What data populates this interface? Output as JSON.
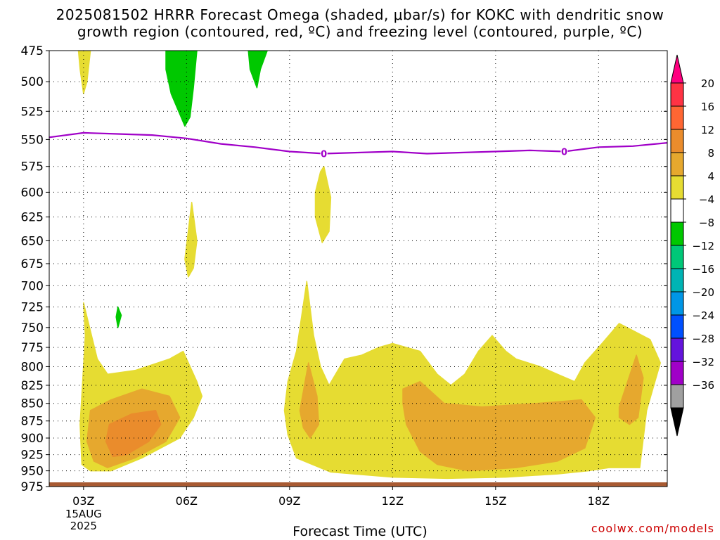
{
  "title_line1": "2025081502 HRRR Forecast Omega (shaded, μbar/s) for KOKC with dendritic snow",
  "title_line2": "growth region (contoured, red, ºC) and freezing level (contoured, purple, ºC)",
  "credit": "coolwx.com/models",
  "chart_data": {
    "type": "time-height",
    "xlabel": "Forecast Time (UTC)",
    "x_ticks": [
      {
        "hour": 3,
        "label": "03Z",
        "sub": [
          "15AUG",
          "2025"
        ]
      },
      {
        "hour": 6,
        "label": "06Z"
      },
      {
        "hour": 9,
        "label": "09Z"
      },
      {
        "hour": 12,
        "label": "12Z"
      },
      {
        "hour": 15,
        "label": "15Z"
      },
      {
        "hour": 18,
        "label": "18Z"
      }
    ],
    "xlim": [
      2,
      20
    ],
    "y_ticks": [
      475,
      500,
      525,
      550,
      575,
      600,
      625,
      650,
      675,
      700,
      725,
      750,
      775,
      800,
      825,
      850,
      875,
      900,
      925,
      950,
      975
    ],
    "ylim": [
      475,
      975
    ],
    "y_scale": "log-pressure",
    "grid": true,
    "colorbar": {
      "labels": [
        "20",
        "16",
        "12",
        "8",
        "4",
        "−4",
        "−8",
        "−12",
        "−16",
        "−20",
        "−24",
        "−28",
        "−32",
        "−36"
      ],
      "colors": [
        "#ff0080",
        "#ff3344",
        "#ff6633",
        "#ea8c2c",
        "#e6a82e",
        "#e6dc32",
        "#ffffff",
        "#00c800",
        "#00c878",
        "#00b4b4",
        "#0096e6",
        "#0050ff",
        "#6414dc",
        "#a000c8",
        "#a0a0a0",
        "#000000"
      ]
    },
    "omega_colors": {
      "4": "#e6dc32",
      "8": "#e6a82e",
      "12": "#ea8c2c",
      "-4": "#00c800"
    },
    "freezing_level": {
      "color": "#a000c8",
      "label": "0",
      "label_hours": [
        10,
        17
      ],
      "points": [
        [
          2,
          548
        ],
        [
          3,
          544
        ],
        [
          4,
          545
        ],
        [
          5,
          546
        ],
        [
          6,
          549
        ],
        [
          7,
          554
        ],
        [
          8,
          557
        ],
        [
          9,
          561
        ],
        [
          10,
          563
        ],
        [
          11,
          562
        ],
        [
          12,
          561
        ],
        [
          13,
          563
        ],
        [
          14,
          562
        ],
        [
          15,
          561
        ],
        [
          16,
          560
        ],
        [
          17,
          561
        ],
        [
          18,
          557
        ],
        [
          19,
          556
        ],
        [
          20,
          553
        ]
      ]
    },
    "ground_color": "#a85a32",
    "regions": [
      {
        "level": 4,
        "points": [
          [
            2.95,
            940
          ],
          [
            2.9,
            880
          ],
          [
            3.05,
            760
          ],
          [
            3,
            720
          ],
          [
            3.4,
            790
          ],
          [
            3.7,
            810
          ],
          [
            4.5,
            805
          ],
          [
            5.5,
            790
          ],
          [
            5.9,
            780
          ],
          [
            6.3,
            820
          ],
          [
            6.45,
            840
          ],
          [
            6.2,
            870
          ],
          [
            5.8,
            900
          ],
          [
            4.7,
            930
          ],
          [
            3.8,
            950
          ],
          [
            3.2,
            950
          ]
        ]
      },
      {
        "level": 8,
        "points": [
          [
            3.1,
            905
          ],
          [
            3.2,
            860
          ],
          [
            3.8,
            845
          ],
          [
            4.7,
            830
          ],
          [
            5.5,
            840
          ],
          [
            5.8,
            870
          ],
          [
            5.4,
            905
          ],
          [
            4.5,
            930
          ],
          [
            3.7,
            945
          ],
          [
            3.3,
            935
          ]
        ]
      },
      {
        "level": 12,
        "points": [
          [
            3.65,
            905
          ],
          [
            3.75,
            880
          ],
          [
            4.4,
            865
          ],
          [
            5.1,
            860
          ],
          [
            5.25,
            880
          ],
          [
            4.9,
            905
          ],
          [
            4.25,
            925
          ],
          [
            3.85,
            928
          ]
        ]
      },
      {
        "level": 4,
        "points": [
          [
            8.85,
            860
          ],
          [
            8.95,
            820
          ],
          [
            9.2,
            780
          ],
          [
            9.5,
            695
          ],
          [
            9.7,
            760
          ],
          [
            9.9,
            800
          ],
          [
            10.15,
            825
          ],
          [
            10.6,
            790
          ],
          [
            11.1,
            785
          ],
          [
            11.6,
            775
          ],
          [
            12,
            770
          ],
          [
            12.4,
            775
          ],
          [
            12.8,
            780
          ],
          [
            13.3,
            810
          ],
          [
            13.7,
            825
          ],
          [
            14.1,
            810
          ],
          [
            14.5,
            780
          ],
          [
            14.9,
            760
          ],
          [
            15.3,
            780
          ],
          [
            15.6,
            790
          ],
          [
            16.3,
            800
          ],
          [
            16.8,
            810
          ],
          [
            17.3,
            820
          ],
          [
            17.6,
            795
          ],
          [
            18.1,
            770
          ],
          [
            18.6,
            745
          ],
          [
            19.5,
            765
          ],
          [
            19.8,
            795
          ],
          [
            19.4,
            860
          ],
          [
            19.2,
            945
          ],
          [
            18.3,
            945
          ],
          [
            17.7,
            950
          ],
          [
            16.8,
            955
          ],
          [
            15.3,
            960
          ],
          [
            13.6,
            962
          ],
          [
            12,
            960
          ],
          [
            10.2,
            952
          ],
          [
            9.2,
            930
          ],
          [
            8.95,
            895
          ]
        ]
      },
      {
        "level": 8,
        "points": [
          [
            9.3,
            860
          ],
          [
            9.55,
            795
          ],
          [
            9.8,
            840
          ],
          [
            9.85,
            880
          ],
          [
            9.6,
            900
          ],
          [
            9.4,
            885
          ]
        ]
      },
      {
        "level": 8,
        "points": [
          [
            12.3,
            830
          ],
          [
            12.8,
            820
          ],
          [
            13.5,
            850
          ],
          [
            14.6,
            855
          ],
          [
            16.2,
            850
          ],
          [
            17.5,
            845
          ],
          [
            17.9,
            870
          ],
          [
            17.6,
            915
          ],
          [
            16.8,
            935
          ],
          [
            15.6,
            945
          ],
          [
            14.2,
            950
          ],
          [
            13.3,
            940
          ],
          [
            12.8,
            920
          ],
          [
            12.4,
            880
          ],
          [
            12.3,
            850
          ]
        ]
      },
      {
        "level": 8,
        "points": [
          [
            18.6,
            855
          ],
          [
            19.1,
            785
          ],
          [
            19.3,
            815
          ],
          [
            19.15,
            870
          ],
          [
            18.9,
            880
          ],
          [
            18.6,
            870
          ]
        ]
      },
      {
        "level": 4,
        "points": [
          [
            6,
            655
          ],
          [
            6.15,
            610
          ],
          [
            6.3,
            650
          ],
          [
            6.2,
            680
          ],
          [
            6.05,
            690
          ],
          [
            5.95,
            670
          ]
        ]
      },
      {
        "level": 4,
        "points": [
          [
            10,
            575
          ],
          [
            10.2,
            605
          ],
          [
            10.15,
            640
          ],
          [
            9.95,
            652
          ],
          [
            9.75,
            625
          ],
          [
            9.75,
            600
          ],
          [
            9.9,
            580
          ]
        ]
      },
      {
        "level": 4,
        "points": [
          [
            2.85,
            475
          ],
          [
            3.2,
            475
          ],
          [
            3.1,
            500
          ],
          [
            3,
            510
          ],
          [
            2.9,
            490
          ]
        ]
      },
      {
        "level": -4,
        "points": [
          [
            5.4,
            475
          ],
          [
            6.3,
            475
          ],
          [
            6.2,
            505
          ],
          [
            6.1,
            530
          ],
          [
            5.95,
            538
          ],
          [
            5.55,
            510
          ],
          [
            5.4,
            490
          ]
        ]
      },
      {
        "level": -4,
        "points": [
          [
            7.8,
            475
          ],
          [
            8.35,
            475
          ],
          [
            8.15,
            490
          ],
          [
            8.05,
            505
          ],
          [
            7.85,
            490
          ]
        ]
      },
      {
        "level": -4,
        "points": [
          [
            4,
            725
          ],
          [
            4.1,
            735
          ],
          [
            4,
            750
          ],
          [
            3.95,
            737
          ]
        ]
      }
    ]
  }
}
